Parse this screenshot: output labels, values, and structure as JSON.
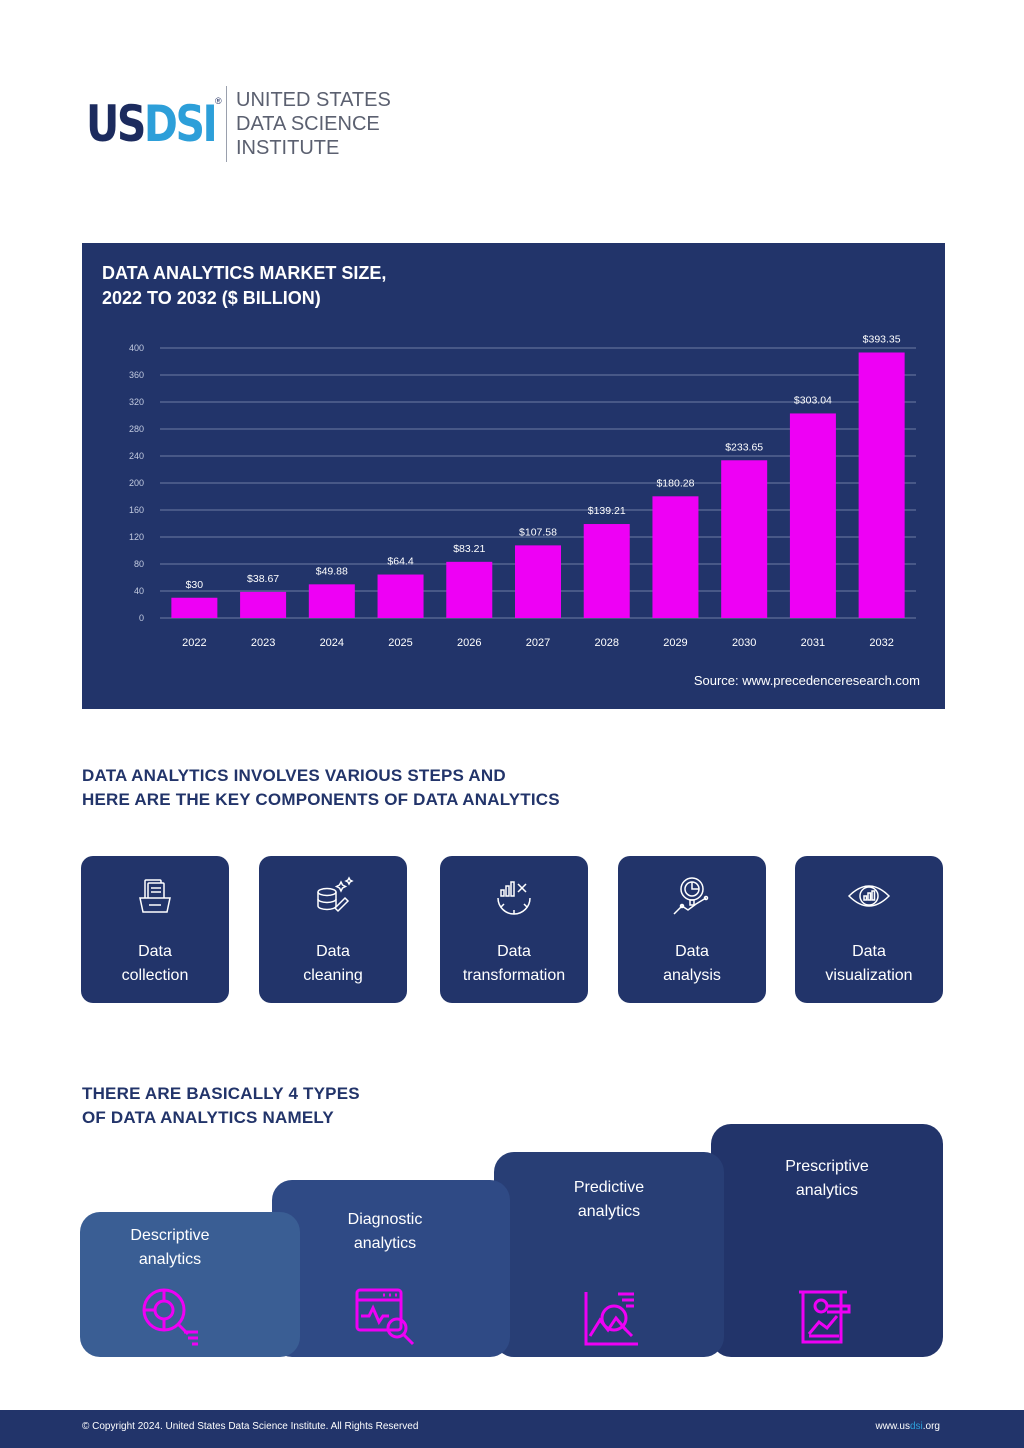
{
  "header": {
    "logo_us": "US",
    "logo_dsi": "DSI",
    "logo_reg": "®",
    "org_lines": [
      "UNITED STATES",
      "DATA SCIENCE",
      "INSTITUTE"
    ]
  },
  "chart": {
    "title_line1": "DATA ANALYTICS MARKET SIZE,",
    "title_line2": "2022 TO 2032 ($ BILLION)",
    "source": "Source: www.precedenceresearch.com"
  },
  "chart_data": {
    "type": "bar",
    "title": "DATA ANALYTICS MARKET SIZE, 2022 TO 2032 ($ BILLION)",
    "categories": [
      "2022",
      "2023",
      "2024",
      "2025",
      "2026",
      "2027",
      "2028",
      "2029",
      "2030",
      "2031",
      "2032"
    ],
    "values": [
      30,
      38.67,
      49.88,
      64.4,
      83.21,
      107.58,
      139.21,
      180.28,
      233.65,
      303.04,
      393.35
    ],
    "value_labels": [
      "$30",
      "$38.67",
      "$49.88",
      "$64.4",
      "$83.21",
      "$107.58",
      "$139.21",
      "$180.28",
      "$233.65",
      "$303.04",
      "$393.35"
    ],
    "y_ticks": [
      0,
      40,
      80,
      120,
      160,
      200,
      240,
      280,
      320,
      360,
      400
    ],
    "ylim": [
      0,
      400
    ],
    "grid": true,
    "bar_color": "#ee00f5"
  },
  "components": {
    "heading_line1": "DATA ANALYTICS INVOLVES VARIOUS STEPS AND",
    "heading_line2": "HERE ARE THE KEY COMPONENTS OF DATA ANALYTICS",
    "items": [
      {
        "line1": "Data",
        "line2": "collection",
        "icon": "data-collection-icon"
      },
      {
        "line1": "Data",
        "line2": "cleaning",
        "icon": "data-cleaning-icon"
      },
      {
        "line1": "Data",
        "line2": "transformation",
        "icon": "data-transformation-icon"
      },
      {
        "line1": "Data",
        "line2": "analysis",
        "icon": "data-analysis-icon"
      },
      {
        "line1": "Data",
        "line2": "visualization",
        "icon": "data-visualization-icon"
      }
    ]
  },
  "types": {
    "heading_line1": "THERE ARE BASICALLY 4 TYPES",
    "heading_line2": "OF DATA ANALYTICS NAMELY",
    "items": [
      {
        "line1": "Descriptive",
        "line2": "analytics",
        "icon": "descriptive-analytics-icon"
      },
      {
        "line1": "Diagnostic",
        "line2": "analytics",
        "icon": "diagnostic-analytics-icon"
      },
      {
        "line1": "Predictive",
        "line2": "analytics",
        "icon": "predictive-analytics-icon"
      },
      {
        "line1": "Prescriptive",
        "line2": "analytics",
        "icon": "prescriptive-analytics-icon"
      }
    ]
  },
  "footer": {
    "copyright": "© Copyright 2024. United States Data Science Institute. All Rights Reserved",
    "url_prefix": "www.us",
    "url_highlight": "dsi",
    "url_suffix": ".org"
  },
  "colors": {
    "navy": "#22346a",
    "accent_magenta": "#ee00f5",
    "brand_blue": "#2d9fd9"
  }
}
